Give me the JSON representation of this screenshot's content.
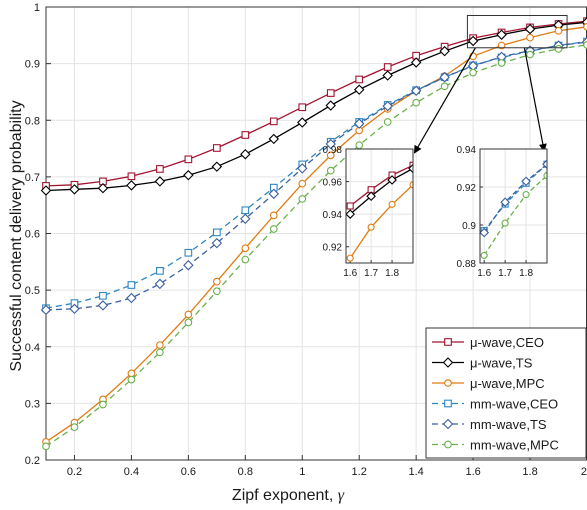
{
  "chart_data": {
    "type": "line",
    "xlabel": "Zipf exponent, ",
    "xlabel_symbol": "γ",
    "ylabel": "Successful content delivery probability",
    "xlim": [
      0.1,
      2.0
    ],
    "ylim": [
      0.2,
      1.0
    ],
    "xticks": [
      0.2,
      0.4,
      0.6,
      0.8,
      1.0,
      1.2,
      1.4,
      1.6,
      1.8,
      2.0
    ],
    "xtick_labels": [
      "0.2",
      "0.4",
      "0.6",
      "0.8",
      "1",
      "1.2",
      "1.4",
      "1.6",
      "1.8",
      "2"
    ],
    "yticks": [
      0.2,
      0.3,
      0.4,
      0.5,
      0.6,
      0.7,
      0.8,
      0.9,
      1.0
    ],
    "ytick_labels": [
      "0.2",
      "0.3",
      "0.4",
      "0.5",
      "0.6",
      "0.7",
      "0.8",
      "0.9",
      "1"
    ],
    "grid": true,
    "legend_position": "bottom-right",
    "x": [
      0.1,
      0.2,
      0.3,
      0.4,
      0.5,
      0.6,
      0.7,
      0.8,
      0.9,
      1.0,
      1.1,
      1.2,
      1.3,
      1.4,
      1.5,
      1.6,
      1.7,
      1.8,
      1.9,
      2.0
    ],
    "series": [
      {
        "name": "μ-wave,CEO",
        "color": "#a2142f",
        "dash": false,
        "marker": "square",
        "values": [
          0.684,
          0.686,
          0.692,
          0.701,
          0.714,
          0.731,
          0.751,
          0.774,
          0.798,
          0.823,
          0.848,
          0.872,
          0.894,
          0.914,
          0.93,
          0.945,
          0.955,
          0.964,
          0.97,
          0.975
        ]
      },
      {
        "name": "μ-wave,TS",
        "color": "#000000",
        "dash": false,
        "marker": "diamond",
        "values": [
          0.676,
          0.678,
          0.68,
          0.685,
          0.692,
          0.703,
          0.718,
          0.74,
          0.767,
          0.796,
          0.826,
          0.854,
          0.879,
          0.902,
          0.922,
          0.94,
          0.951,
          0.961,
          0.968,
          0.973
        ]
      },
      {
        "name": "μ-wave,MPC",
        "color": "#e07b10",
        "dash": false,
        "marker": "circle",
        "values": [
          0.232,
          0.266,
          0.307,
          0.353,
          0.403,
          0.457,
          0.515,
          0.574,
          0.632,
          0.688,
          0.738,
          0.782,
          0.82,
          0.852,
          0.878,
          0.913,
          0.932,
          0.946,
          0.958,
          0.965
        ]
      },
      {
        "name": "mm-wave,CEO",
        "color": "#2e86c1",
        "dash": true,
        "marker": "square",
        "values": [
          0.468,
          0.477,
          0.49,
          0.509,
          0.534,
          0.566,
          0.602,
          0.641,
          0.681,
          0.722,
          0.762,
          0.797,
          0.827,
          0.853,
          0.876,
          0.897,
          0.911,
          0.922,
          0.932,
          0.939
        ]
      },
      {
        "name": "mm-wave,TS",
        "color": "#3a5f9f",
        "dash": true,
        "marker": "diamond",
        "values": [
          0.465,
          0.467,
          0.473,
          0.486,
          0.511,
          0.544,
          0.583,
          0.626,
          0.67,
          0.715,
          0.758,
          0.794,
          0.825,
          0.852,
          0.876,
          0.896,
          0.912,
          0.923,
          0.932,
          0.938
        ]
      },
      {
        "name": "mm-wave,MPC",
        "color": "#6ab04c",
        "dash": true,
        "marker": "circle",
        "values": [
          0.224,
          0.258,
          0.298,
          0.342,
          0.39,
          0.443,
          0.498,
          0.554,
          0.608,
          0.661,
          0.711,
          0.756,
          0.797,
          0.831,
          0.86,
          0.884,
          0.901,
          0.916,
          0.926,
          0.933
        ]
      }
    ],
    "insets": [
      {
        "xlim": [
          1.58,
          1.9
        ],
        "ylim": [
          0.91,
          0.98
        ],
        "xticks": [
          1.6,
          1.7,
          1.8
        ],
        "xtick_labels": [
          "1.6",
          "1.7",
          "1.8"
        ],
        "yticks": [
          0.92,
          0.94,
          0.96,
          0.98
        ],
        "ytick_labels": [
          "0.92",
          "0.94",
          "0.96",
          "0.98"
        ],
        "series": [
          0,
          1,
          2
        ]
      },
      {
        "xlim": [
          1.58,
          1.9
        ],
        "ylim": [
          0.88,
          0.94
        ],
        "xticks": [
          1.6,
          1.7,
          1.8
        ],
        "xtick_labels": [
          "1.6",
          "1.7",
          "1.8"
        ],
        "yticks": [
          0.88,
          0.9,
          0.92,
          0.94
        ],
        "ytick_labels": [
          "0.88",
          "0.9",
          "0.92",
          "0.94"
        ],
        "series": [
          3,
          4,
          5
        ]
      }
    ],
    "zoom_box": {
      "xlim": [
        1.58,
        1.93
      ],
      "ylim": [
        0.928,
        0.985
      ]
    }
  }
}
